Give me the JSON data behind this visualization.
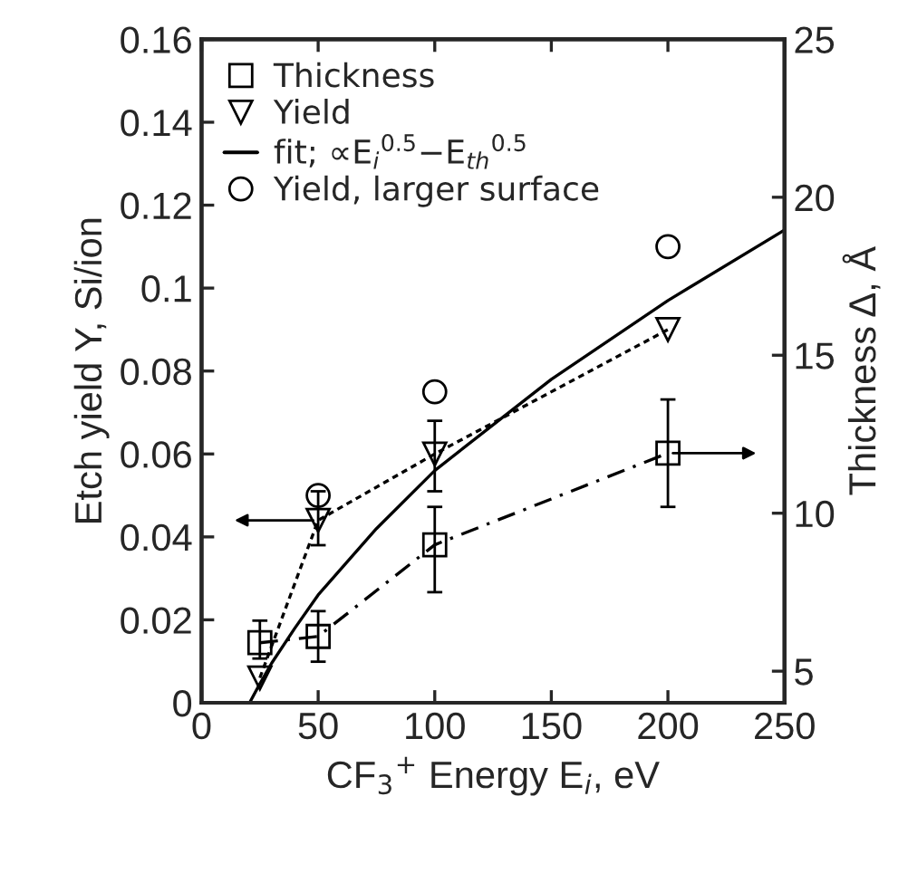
{
  "chart_data": {
    "type": "line",
    "xlabel": "CF$_{3}$$^{+}$ Energy E$_{i}$, eV",
    "ylabel": "Etch yield Y, Si/ion",
    "y2label": "Thickness Δ, Å",
    "xlim": [
      0,
      250
    ],
    "xticks": [
      0,
      50,
      100,
      150,
      200,
      250
    ],
    "ylim": [
      0,
      0.16
    ],
    "yticks": [
      0,
      0.02,
      0.04,
      0.06,
      0.08,
      0.1,
      0.12,
      0.14,
      0.16
    ],
    "y2lim": [
      4,
      25
    ],
    "y2ticks": [
      5,
      10,
      15,
      20,
      25
    ],
    "grid": false,
    "legend": "top left",
    "series": [
      {
        "name": "Thickness",
        "type": "line",
        "axis": "y2",
        "color": "#000000",
        "marker": "square",
        "line_style": "dashed",
        "x": [
          25,
          50,
          100,
          200
        ],
        "values": [
          5.9,
          6.1,
          9.0,
          11.9
        ],
        "errors": [
          [
            5.4,
            6.6
          ],
          [
            5.3,
            6.9
          ],
          [
            7.5,
            10.2
          ],
          [
            10.2,
            13.6
          ]
        ]
      },
      {
        "name": "Yield",
        "type": "line",
        "color": "#000000",
        "marker": "triangle",
        "line_style": "dotted",
        "x": [
          25,
          50,
          100,
          200
        ],
        "values": [
          0.006,
          0.044,
          0.06,
          0.09
        ],
        "errors": [
          null,
          [
            0.038,
            0.051
          ],
          [
            0.051,
            0.068
          ],
          null
        ]
      },
      {
        "name": "fit; ∝E$_{i}$$^{0.5}$−E$_{th}$$^{0.5}$",
        "type": "line",
        "color": "#000000",
        "marker": "none",
        "line_style": "solid",
        "x": [
          20.6,
          25,
          30,
          40,
          50,
          75,
          100,
          150,
          200,
          250
        ],
        "values": [
          0,
          0.0046,
          0.0095,
          0.018,
          0.026,
          0.042,
          0.056,
          0.078,
          0.097,
          0.114
        ]
      },
      {
        "name": "Yield, larger surface",
        "type": "scatter",
        "color": "#000000",
        "marker": "circle",
        "x": [
          50,
          100,
          200
        ],
        "values": [
          0.05,
          0.075,
          0.11
        ]
      }
    ]
  }
}
